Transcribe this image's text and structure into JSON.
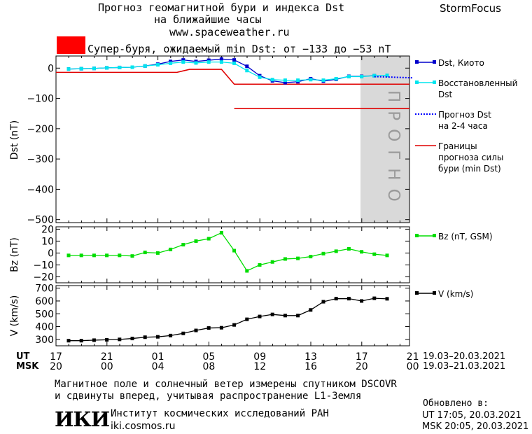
{
  "header": {
    "title_line1": "Прогноз геомагнитной бури и индекса Dst",
    "title_line2": "на ближайшие часы",
    "url": "www.spaceweather.ru",
    "brand": "StormFocus"
  },
  "storm": {
    "label": "Супер-буря, ожидаемый min Dst: от −133 до −53 nT",
    "color": "#ff0000"
  },
  "prognosis_label": "ПРОГНО",
  "legend": {
    "dst_kyoto": "Dst, Киото",
    "restored_1": "Восстановленный",
    "restored_2": "Dst",
    "forecast_1": "Прогноз Dst",
    "forecast_2": "на 2-4 часа",
    "bounds_1": "Границы",
    "bounds_2": "прогноза силы",
    "bounds_3": "бури (min Dst)",
    "bz": "Bz (nT, GSM)",
    "v": "V (km/s)"
  },
  "time_axis": {
    "ut_label": "UT",
    "msk_label": "MSK",
    "ut_ticks": [
      "17",
      "21",
      "01",
      "05",
      "09",
      "13",
      "17",
      "21"
    ],
    "msk_ticks": [
      "20",
      "00",
      "04",
      "08",
      "12",
      "16",
      "20",
      "00"
    ],
    "ut_range": "19.03–20.03.2021",
    "msk_range": "19.03–21.03.2021"
  },
  "footer": {
    "line1": "Магнитное поле и солнечный ветер измерены спутником DSCOVR",
    "line2": "и сдвинуты вперед, учитывая распространение L1-Земля",
    "institute": "Институт космических исследований РАН",
    "site": "iki.cosmos.ru",
    "logo": "ИКИ",
    "updated_label": "Обновлено в:",
    "updated_ut": "UT  17:05, 20.03.2021",
    "updated_msk": "MSK 20:05, 20.03.2021"
  },
  "chart_data": [
    {
      "type": "line",
      "ylabel": "Dst (nT)",
      "ylim": [
        -510,
        40
      ],
      "yticks": [
        0,
        -100,
        -200,
        -300,
        -400,
        -500
      ],
      "x_hours_since_ut17": [
        0,
        1,
        2,
        3,
        4,
        5,
        6,
        7,
        8,
        9,
        10,
        11,
        12,
        13,
        14,
        15,
        16,
        17,
        18,
        19,
        20,
        21,
        22,
        23,
        24,
        25
      ],
      "series": [
        {
          "name": "Dst, Киото",
          "color": "#0000cc",
          "values": [
            -3,
            -2,
            -1,
            1,
            2,
            3,
            7,
            13,
            22,
            27,
            22,
            26,
            30,
            27,
            6,
            -25,
            -42,
            -48,
            -45,
            -35,
            -43,
            -37,
            -27,
            -27,
            -25,
            null
          ]
        },
        {
          "name": "Восстановленный Dst",
          "color": "#00e5ee",
          "values": [
            -3,
            -2,
            -1,
            1,
            2,
            3,
            7,
            11,
            16,
            20,
            17,
            20,
            20,
            16,
            -8,
            -30,
            -38,
            -40,
            -40,
            -38,
            -40,
            -35,
            -28,
            -28,
            -25,
            -24
          ]
        },
        {
          "name": "Прогноз Dst на 2-4 часа",
          "color": "#0000ff",
          "dotted": true,
          "x": [
            24,
            27
          ],
          "values": [
            -28,
            -32
          ]
        }
      ],
      "bounds": [
        {
          "name": "Границы прогноза силы бури (min Dst)",
          "color": "#e00000",
          "x": [
            -1,
            8.5,
            9.5,
            12,
            13,
            31
          ],
          "values": [
            -14,
            -14,
            -4,
            -4,
            -53,
            -53
          ]
        },
        {
          "color": "#e00000",
          "x": [
            13,
            31
          ],
          "values": [
            -133,
            -133
          ]
        }
      ],
      "prognosis_shade_x": [
        24,
        28
      ]
    },
    {
      "type": "line",
      "ylabel": "Bz (nT)",
      "ylim": [
        -25,
        22
      ],
      "yticks": [
        20,
        10,
        0,
        -10,
        -20
      ],
      "series": [
        {
          "name": "Bz (nT, GSM)",
          "color": "#00dd00",
          "x": [
            0,
            1,
            2,
            3,
            4,
            5,
            6,
            7,
            8,
            9,
            10,
            11,
            12,
            13,
            14,
            15,
            16,
            17,
            18,
            19,
            20,
            21,
            22,
            23,
            24,
            25
          ],
          "values": [
            -2,
            -2,
            -2,
            -2,
            -2,
            -2.5,
            0.5,
            0,
            3,
            7,
            10,
            12,
            17,
            2,
            -15,
            -10,
            -7.5,
            -5,
            -4.5,
            -3,
            -0.5,
            1.5,
            3.5,
            1,
            -1,
            -2
          ]
        }
      ]
    },
    {
      "type": "line",
      "ylabel": "V (km/s)",
      "ylim": [
        250,
        720
      ],
      "yticks": [
        700,
        600,
        500,
        400,
        300
      ],
      "series": [
        {
          "name": "V (km/s)",
          "color": "#000000",
          "x": [
            0,
            1,
            2,
            3,
            4,
            5,
            6,
            7,
            8,
            9,
            10,
            11,
            12,
            13,
            14,
            15,
            16,
            17,
            18,
            19,
            20,
            21,
            22,
            23,
            24,
            25
          ],
          "values": [
            290,
            290,
            294,
            297,
            300,
            307,
            317,
            320,
            330,
            347,
            370,
            389,
            391,
            413,
            457,
            479,
            495,
            486,
            486,
            530,
            594,
            618,
            618,
            600,
            621,
            617
          ]
        }
      ]
    }
  ]
}
